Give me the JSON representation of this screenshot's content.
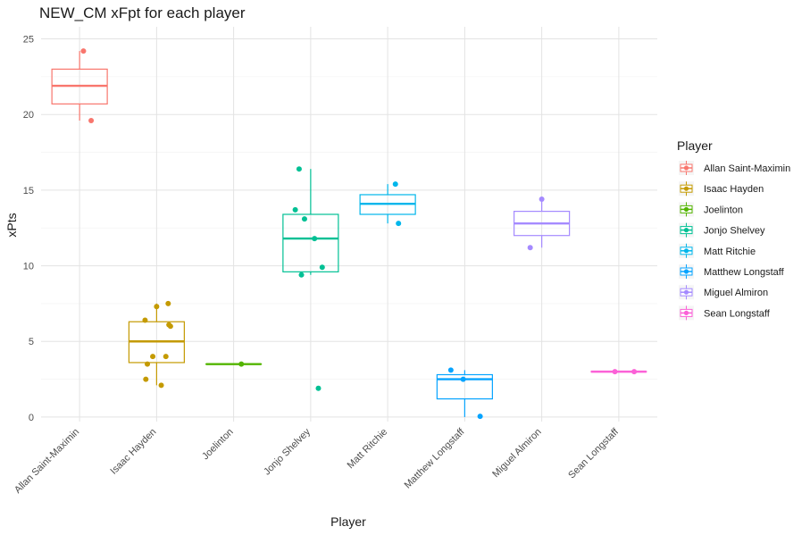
{
  "chart_data": {
    "type": "boxplot",
    "title": "NEW_CM xFpt for each player",
    "xlabel": "Player",
    "ylabel": "xPts",
    "ylim": [
      -0.3,
      25.8
    ],
    "yticks": [
      0,
      5,
      10,
      15,
      20,
      25
    ],
    "grid": true,
    "legend_title": "Player",
    "legend_position": "right",
    "categories": [
      "Allan Saint-Maximin",
      "Isaac Hayden",
      "Joelinton",
      "Jonjo Shelvey",
      "Matt Ritchie",
      "Matthew Longstaff",
      "Miguel Almiron",
      "Sean Longstaff"
    ],
    "series": [
      {
        "name": "Allan Saint-Maximin",
        "color": "#F8766D",
        "box": {
          "min": 19.6,
          "q1": 20.7,
          "median": 21.9,
          "q3": 23.0,
          "max": 24.2
        },
        "points": [
          [
            0.05,
            24.2
          ],
          [
            0.15,
            19.6
          ]
        ]
      },
      {
        "name": "Isaac Hayden",
        "color": "#C49A00",
        "box": {
          "min": 2.1,
          "q1": 3.6,
          "median": 5.0,
          "q3": 6.3,
          "max": 7.5
        },
        "points": [
          [
            -0.15,
            6.4
          ],
          [
            0.0,
            7.3
          ],
          [
            0.15,
            7.5
          ],
          [
            0.18,
            6.0
          ],
          [
            0.16,
            6.1
          ],
          [
            -0.05,
            4.0
          ],
          [
            0.12,
            4.0
          ],
          [
            -0.12,
            3.5
          ],
          [
            -0.14,
            2.5
          ],
          [
            0.06,
            2.1
          ]
        ]
      },
      {
        "name": "Joelinton",
        "color": "#53B400",
        "box": {
          "min": 3.5,
          "q1": 3.5,
          "median": 3.5,
          "q3": 3.5,
          "max": 3.5
        },
        "points": [
          [
            0.1,
            3.5
          ]
        ]
      },
      {
        "name": "Jonjo Shelvey",
        "color": "#00C094",
        "box": {
          "min": 9.4,
          "q1": 9.6,
          "median": 11.8,
          "q3": 13.4,
          "max": 16.4
        },
        "points": [
          [
            -0.15,
            16.4
          ],
          [
            -0.2,
            13.7
          ],
          [
            -0.08,
            13.1
          ],
          [
            0.05,
            11.8
          ],
          [
            0.15,
            9.9
          ],
          [
            -0.12,
            9.4
          ],
          [
            0.1,
            1.9
          ]
        ]
      },
      {
        "name": "Matt Ritchie",
        "color": "#00B6EB",
        "box": {
          "min": 12.8,
          "q1": 13.4,
          "median": 14.1,
          "q3": 14.7,
          "max": 15.4
        },
        "points": [
          [
            0.1,
            15.4
          ],
          [
            0.14,
            12.8
          ]
        ]
      },
      {
        "name": "Matthew Longstaff",
        "color": "#06A4FF",
        "box": {
          "min": 0.0,
          "q1": 1.2,
          "median": 2.5,
          "q3": 2.8,
          "max": 3.1
        },
        "points": [
          [
            -0.18,
            3.1
          ],
          [
            -0.02,
            2.5
          ],
          [
            0.2,
            0.05
          ]
        ]
      },
      {
        "name": "Miguel Almiron",
        "color": "#A58AFF",
        "box": {
          "min": 11.2,
          "q1": 12.0,
          "median": 12.8,
          "q3": 13.6,
          "max": 14.4
        },
        "points": [
          [
            0.0,
            14.4
          ],
          [
            -0.15,
            11.2
          ]
        ]
      },
      {
        "name": "Sean Longstaff",
        "color": "#FB61D7",
        "box": {
          "min": 3.0,
          "q1": 3.0,
          "median": 3.0,
          "q3": 3.0,
          "max": 3.0
        },
        "points": [
          [
            -0.05,
            3.0
          ],
          [
            0.2,
            3.0
          ]
        ]
      }
    ]
  }
}
